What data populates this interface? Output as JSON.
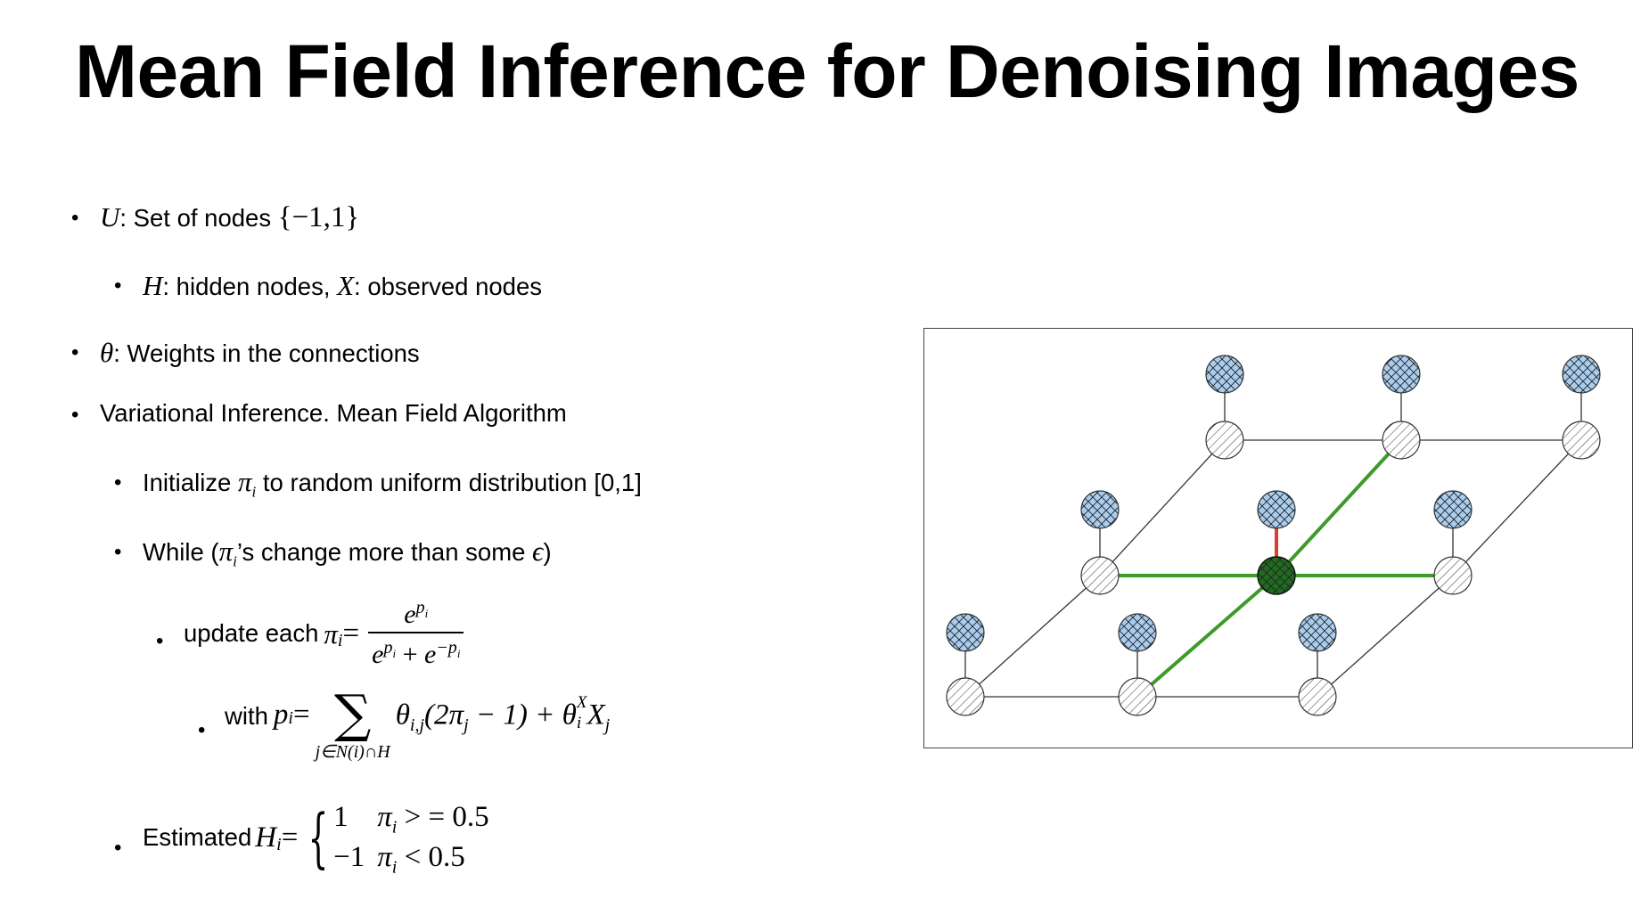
{
  "slide": {
    "title": "Mean Field Inference for Denoising Images",
    "bullets": {
      "b1": {
        "var": "U",
        "text": ": Set of nodes ",
        "set": "{−1,1}"
      },
      "b2": {
        "var1": "H",
        "text1": ": hidden nodes, ",
        "var2": "X",
        "text2": ": observed nodes"
      },
      "b3": {
        "var": "θ",
        "text": ": Weights in the connections"
      },
      "b4": {
        "text": "Variational Inference. Mean Field Algorithm"
      },
      "b5": {
        "text1": "Initialize ",
        "pi": "π",
        "sub": "i",
        "text2": " to random uniform distribution [0,1]"
      },
      "b6": {
        "text1": "While (",
        "pi": "π",
        "sub": "i",
        "text2": "’s change more than some ",
        "eps": "ϵ",
        "text3": ")"
      },
      "b7": {
        "text": "update each ",
        "lhs": "π",
        "lhs_sub": "i",
        "eq": " =",
        "num": "e",
        "num_sup": "p",
        "num_sup_sub": "i",
        "den1": "e",
        "den1_sup": "p",
        "den1_sup_sub": "i",
        "den_plus": " + ",
        "den2": "e",
        "den2_sup": "−p",
        "den2_sup_sub": "i"
      },
      "b8": {
        "text": "with ",
        "lhs": "p",
        "lhs_sub": "i",
        "eq": " =",
        "sum_sym": "∑",
        "sum_sub": "j∈N(i)∩H",
        "t1": "θ",
        "t1_sub": "i,j",
        "t2": "(2π",
        "t2_sub": "j",
        "t3": " − 1) + θ",
        "t3_sub": "i",
        "t3_sup": "X",
        "t4": "X",
        "t4_sub": "j"
      },
      "b9": {
        "text": "Estimated ",
        "lhs": "H",
        "lhs_sub": "i",
        "eq": " =",
        "case1_val": "1",
        "case1_cond": "π",
        "case1_sub": "i",
        "case1_rest": " > = 0.5",
        "case2_val": "−1",
        "case2_cond": "π",
        "case2_sub": "i",
        "case2_rest": " < 0.5"
      }
    },
    "bullet_glyph": "•",
    "figure": {
      "observed_color": "#a9cdef",
      "hidden_color": "#ffffff",
      "center_color": "#1f6b1f",
      "highlight_edge_color": "#3f9a2a",
      "observed_link_color": "#e53a2e"
    }
  }
}
